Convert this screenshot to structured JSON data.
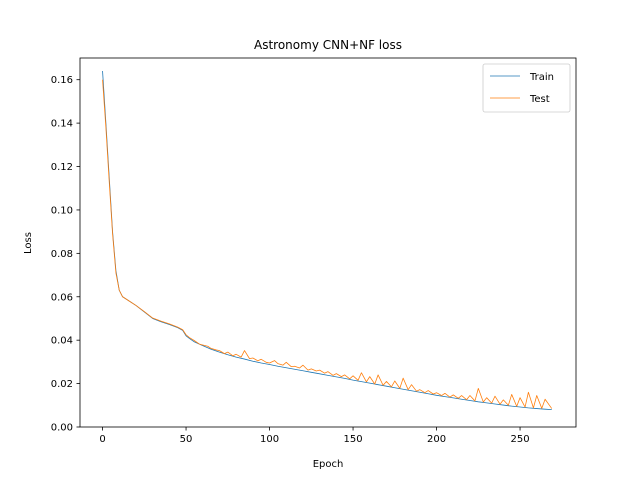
{
  "chart_data": {
    "type": "line",
    "title": "Astronomy CNN+NF loss",
    "xlabel": "Epoch",
    "ylabel": "Loss",
    "xlim": [
      -13.5,
      283.5
    ],
    "ylim": [
      0.0,
      0.17
    ],
    "xticks": [
      "0",
      "50",
      "100",
      "150",
      "200",
      "250"
    ],
    "yticks": [
      "0.00",
      "0.02",
      "0.04",
      "0.06",
      "0.08",
      "0.10",
      "0.12",
      "0.14",
      "0.16"
    ],
    "grid": false,
    "legend_position": "top-right",
    "series": [
      {
        "name": "Train",
        "color": "#1f77b4",
        "x": [
          0,
          2,
          4,
          6,
          8,
          10,
          12,
          15,
          20,
          25,
          30,
          35,
          40,
          45,
          48,
          50,
          52,
          55,
          60,
          65,
          70,
          75,
          80,
          85,
          90,
          95,
          100,
          105,
          110,
          115,
          120,
          125,
          130,
          135,
          140,
          145,
          150,
          155,
          160,
          165,
          170,
          175,
          180,
          185,
          190,
          195,
          200,
          205,
          210,
          215,
          220,
          225,
          230,
          235,
          240,
          245,
          250,
          255,
          260,
          265,
          269
        ],
        "values": [
          0.164,
          0.14,
          0.115,
          0.09,
          0.072,
          0.063,
          0.06,
          0.0585,
          0.056,
          0.053,
          0.05,
          0.0485,
          0.0472,
          0.0458,
          0.0445,
          0.042,
          0.0408,
          0.0392,
          0.0375,
          0.0358,
          0.0345,
          0.0333,
          0.0322,
          0.0313,
          0.0303,
          0.0295,
          0.0288,
          0.028,
          0.0273,
          0.0266,
          0.0259,
          0.0252,
          0.0245,
          0.0238,
          0.0231,
          0.0224,
          0.0216,
          0.0209,
          0.0202,
          0.0195,
          0.0188,
          0.0181,
          0.0174,
          0.0167,
          0.016,
          0.0153,
          0.0146,
          0.014,
          0.0134,
          0.0128,
          0.0122,
          0.0116,
          0.0111,
          0.0106,
          0.0101,
          0.0096,
          0.0092,
          0.0088,
          0.0085,
          0.0082,
          0.008
        ]
      },
      {
        "name": "Test",
        "color": "#ff7f0e",
        "x": [
          0,
          2,
          4,
          6,
          8,
          10,
          12,
          15,
          20,
          25,
          30,
          35,
          40,
          45,
          48,
          50,
          52,
          55,
          58,
          60,
          63,
          65,
          68,
          70,
          73,
          75,
          78,
          80,
          83,
          85,
          88,
          90,
          93,
          95,
          98,
          100,
          103,
          105,
          108,
          110,
          113,
          115,
          118,
          120,
          123,
          125,
          128,
          130,
          133,
          135,
          138,
          140,
          143,
          145,
          148,
          150,
          153,
          155,
          158,
          160,
          163,
          165,
          168,
          170,
          173,
          175,
          178,
          180,
          183,
          185,
          188,
          190,
          193,
          195,
          198,
          200,
          203,
          205,
          208,
          210,
          213,
          215,
          218,
          220,
          223,
          225,
          228,
          230,
          233,
          235,
          238,
          240,
          243,
          245,
          248,
          250,
          253,
          255,
          258,
          260,
          263,
          265,
          269
        ],
        "values": [
          0.16,
          0.138,
          0.113,
          0.089,
          0.071,
          0.063,
          0.06,
          0.0585,
          0.056,
          0.0532,
          0.0502,
          0.0488,
          0.0475,
          0.046,
          0.0448,
          0.0425,
          0.0412,
          0.0398,
          0.0382,
          0.0378,
          0.0372,
          0.0362,
          0.0355,
          0.0352,
          0.0338,
          0.0345,
          0.0328,
          0.0335,
          0.0322,
          0.0352,
          0.0315,
          0.0318,
          0.0305,
          0.0312,
          0.0298,
          0.0295,
          0.0306,
          0.0292,
          0.0285,
          0.0298,
          0.0278,
          0.028,
          0.0272,
          0.0285,
          0.0262,
          0.0268,
          0.0258,
          0.0262,
          0.0248,
          0.0255,
          0.0238,
          0.0246,
          0.0232,
          0.024,
          0.0222,
          0.0236,
          0.0215,
          0.025,
          0.0208,
          0.0232,
          0.0198,
          0.024,
          0.0192,
          0.021,
          0.0185,
          0.0212,
          0.0178,
          0.0225,
          0.0172,
          0.0195,
          0.0165,
          0.0172,
          0.0158,
          0.0168,
          0.0152,
          0.0158,
          0.0145,
          0.0155,
          0.0138,
          0.0148,
          0.0132,
          0.0145,
          0.0126,
          0.0145,
          0.012,
          0.0178,
          0.0115,
          0.0135,
          0.011,
          0.0142,
          0.0105,
          0.0125,
          0.01,
          0.015,
          0.0095,
          0.0135,
          0.0092,
          0.016,
          0.0088,
          0.0145,
          0.0086,
          0.0128,
          0.0085
        ]
      }
    ]
  }
}
